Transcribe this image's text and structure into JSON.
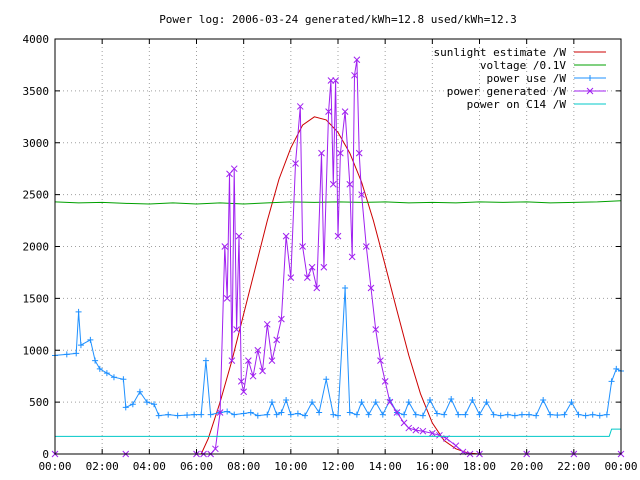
{
  "chart_data": {
    "type": "line",
    "title": "Power log: 2006-03-24 generated/kWh=12.8 used/kWh=12.3",
    "xlabel": "",
    "ylabel": "",
    "xlim": [
      0,
      24
    ],
    "ylim": [
      0,
      4000
    ],
    "grid": true,
    "legend_position": "top-right",
    "x_tick_labels": [
      "00:00",
      "02:00",
      "04:00",
      "06:00",
      "08:00",
      "10:00",
      "12:00",
      "14:00",
      "16:00",
      "18:00",
      "20:00",
      "22:00",
      "00:00"
    ],
    "x_tick_values": [
      0,
      2,
      4,
      6,
      8,
      10,
      12,
      14,
      16,
      18,
      20,
      22,
      24
    ],
    "y_tick_labels": [
      "0",
      "500",
      "1000",
      "1500",
      "2000",
      "2500",
      "3000",
      "3500",
      "4000"
    ],
    "y_tick_values": [
      0,
      500,
      1000,
      1500,
      2000,
      2500,
      3000,
      3500,
      4000
    ],
    "series": [
      {
        "name": "sunlight estimate /W",
        "color": "#cc0000",
        "marker": "none",
        "points": [
          [
            6.2,
            0
          ],
          [
            6.5,
            150
          ],
          [
            7,
            500
          ],
          [
            7.5,
            900
          ],
          [
            8,
            1350
          ],
          [
            8.5,
            1800
          ],
          [
            9,
            2250
          ],
          [
            9.5,
            2650
          ],
          [
            10,
            2950
          ],
          [
            10.5,
            3170
          ],
          [
            11,
            3250
          ],
          [
            11.5,
            3220
          ],
          [
            12,
            3100
          ],
          [
            12.5,
            2900
          ],
          [
            13,
            2620
          ],
          [
            13.5,
            2250
          ],
          [
            14,
            1820
          ],
          [
            14.5,
            1380
          ],
          [
            15,
            950
          ],
          [
            15.5,
            580
          ],
          [
            16,
            300
          ],
          [
            16.5,
            130
          ],
          [
            17,
            50
          ],
          [
            17.5,
            10
          ],
          [
            18,
            0
          ]
        ]
      },
      {
        "name": "voltage /0.1V",
        "color": "#00a000",
        "marker": "none",
        "points": [
          [
            0,
            2430
          ],
          [
            1,
            2420
          ],
          [
            2,
            2425
          ],
          [
            3,
            2415
          ],
          [
            4,
            2410
          ],
          [
            5,
            2420
          ],
          [
            6,
            2410
          ],
          [
            7,
            2420
          ],
          [
            8,
            2410
          ],
          [
            9,
            2420
          ],
          [
            10,
            2430
          ],
          [
            11,
            2425
          ],
          [
            12,
            2430
          ],
          [
            13,
            2425
          ],
          [
            14,
            2430
          ],
          [
            15,
            2420
          ],
          [
            16,
            2425
          ],
          [
            17,
            2420
          ],
          [
            18,
            2430
          ],
          [
            19,
            2425
          ],
          [
            20,
            2430
          ],
          [
            21,
            2420
          ],
          [
            22,
            2425
          ],
          [
            23,
            2430
          ],
          [
            24,
            2440
          ]
        ]
      },
      {
        "name": "power use /W",
        "color": "#1e90ff",
        "marker": "plus",
        "points": [
          [
            0,
            950
          ],
          [
            0.5,
            960
          ],
          [
            0.9,
            970
          ],
          [
            1.0,
            1370
          ],
          [
            1.1,
            1050
          ],
          [
            1.5,
            1100
          ],
          [
            1.7,
            900
          ],
          [
            1.9,
            820
          ],
          [
            2.2,
            780
          ],
          [
            2.5,
            740
          ],
          [
            2.9,
            720
          ],
          [
            3.0,
            450
          ],
          [
            3.3,
            480
          ],
          [
            3.6,
            600
          ],
          [
            3.9,
            500
          ],
          [
            4.2,
            480
          ],
          [
            4.4,
            370
          ],
          [
            4.8,
            380
          ],
          [
            5.2,
            370
          ],
          [
            5.6,
            375
          ],
          [
            5.9,
            380
          ],
          [
            6.2,
            380
          ],
          [
            6.4,
            900
          ],
          [
            6.6,
            380
          ],
          [
            7.0,
            400
          ],
          [
            7.3,
            410
          ],
          [
            7.6,
            380
          ],
          [
            8.0,
            390
          ],
          [
            8.3,
            400
          ],
          [
            8.6,
            370
          ],
          [
            9.0,
            380
          ],
          [
            9.2,
            500
          ],
          [
            9.4,
            380
          ],
          [
            9.6,
            400
          ],
          [
            9.8,
            520
          ],
          [
            10.0,
            380
          ],
          [
            10.3,
            390
          ],
          [
            10.6,
            370
          ],
          [
            10.9,
            500
          ],
          [
            11.2,
            400
          ],
          [
            11.5,
            720
          ],
          [
            11.8,
            380
          ],
          [
            12.0,
            370
          ],
          [
            12.3,
            1600
          ],
          [
            12.5,
            400
          ],
          [
            12.8,
            380
          ],
          [
            13.0,
            500
          ],
          [
            13.3,
            380
          ],
          [
            13.6,
            500
          ],
          [
            13.9,
            380
          ],
          [
            14.2,
            520
          ],
          [
            14.5,
            400
          ],
          [
            14.8,
            380
          ],
          [
            15.0,
            500
          ],
          [
            15.3,
            380
          ],
          [
            15.6,
            370
          ],
          [
            15.9,
            520
          ],
          [
            16.2,
            390
          ],
          [
            16.5,
            380
          ],
          [
            16.8,
            530
          ],
          [
            17.1,
            380
          ],
          [
            17.4,
            380
          ],
          [
            17.7,
            520
          ],
          [
            18.0,
            380
          ],
          [
            18.3,
            500
          ],
          [
            18.6,
            380
          ],
          [
            18.9,
            370
          ],
          [
            19.2,
            380
          ],
          [
            19.5,
            370
          ],
          [
            19.8,
            380
          ],
          [
            20.1,
            380
          ],
          [
            20.4,
            370
          ],
          [
            20.7,
            520
          ],
          [
            21.0,
            380
          ],
          [
            21.3,
            375
          ],
          [
            21.6,
            380
          ],
          [
            21.9,
            500
          ],
          [
            22.2,
            380
          ],
          [
            22.5,
            370
          ],
          [
            22.8,
            380
          ],
          [
            23.1,
            370
          ],
          [
            23.4,
            380
          ],
          [
            23.6,
            700
          ],
          [
            23.8,
            820
          ],
          [
            24.0,
            800
          ]
        ]
      },
      {
        "name": "power generated /W",
        "color": "#a020f0",
        "marker": "cross",
        "points": [
          [
            0,
            0
          ],
          [
            3,
            0
          ],
          [
            6,
            0
          ],
          [
            6.3,
            0
          ],
          [
            6.6,
            0
          ],
          [
            6.8,
            50
          ],
          [
            7.0,
            400
          ],
          [
            7.2,
            2000
          ],
          [
            7.3,
            1500
          ],
          [
            7.4,
            2700
          ],
          [
            7.5,
            900
          ],
          [
            7.6,
            2750
          ],
          [
            7.7,
            1200
          ],
          [
            7.8,
            2100
          ],
          [
            7.9,
            700
          ],
          [
            8.0,
            600
          ],
          [
            8.2,
            900
          ],
          [
            8.4,
            750
          ],
          [
            8.6,
            1000
          ],
          [
            8.8,
            800
          ],
          [
            9.0,
            1250
          ],
          [
            9.2,
            900
          ],
          [
            9.4,
            1100
          ],
          [
            9.6,
            1300
          ],
          [
            9.8,
            2100
          ],
          [
            10.0,
            1700
          ],
          [
            10.2,
            2800
          ],
          [
            10.4,
            3350
          ],
          [
            10.5,
            2000
          ],
          [
            10.7,
            1700
          ],
          [
            10.9,
            1800
          ],
          [
            11.1,
            1600
          ],
          [
            11.3,
            2900
          ],
          [
            11.4,
            1800
          ],
          [
            11.6,
            3300
          ],
          [
            11.7,
            3600
          ],
          [
            11.8,
            2600
          ],
          [
            11.9,
            3600
          ],
          [
            12.0,
            2100
          ],
          [
            12.1,
            2900
          ],
          [
            12.3,
            3300
          ],
          [
            12.5,
            2600
          ],
          [
            12.6,
            1900
          ],
          [
            12.7,
            3650
          ],
          [
            12.8,
            3800
          ],
          [
            12.9,
            2900
          ],
          [
            13.0,
            2500
          ],
          [
            13.2,
            2000
          ],
          [
            13.4,
            1600
          ],
          [
            13.6,
            1200
          ],
          [
            13.8,
            900
          ],
          [
            14.0,
            700
          ],
          [
            14.2,
            500
          ],
          [
            14.5,
            400
          ],
          [
            14.8,
            300
          ],
          [
            15.0,
            250
          ],
          [
            15.3,
            230
          ],
          [
            15.6,
            220
          ],
          [
            16.0,
            200
          ],
          [
            16.3,
            180
          ],
          [
            16.6,
            150
          ],
          [
            17.0,
            80
          ],
          [
            17.3,
            20
          ],
          [
            17.6,
            0
          ],
          [
            18,
            0
          ],
          [
            20,
            0
          ],
          [
            22,
            0
          ],
          [
            24,
            0
          ]
        ]
      },
      {
        "name": "power on C14 /W",
        "color": "#00c8c8",
        "marker": "none",
        "points": [
          [
            0,
            170
          ],
          [
            2,
            170
          ],
          [
            4,
            170
          ],
          [
            6,
            170
          ],
          [
            8,
            170
          ],
          [
            10,
            170
          ],
          [
            12,
            170
          ],
          [
            14,
            170
          ],
          [
            16,
            170
          ],
          [
            18,
            170
          ],
          [
            20,
            170
          ],
          [
            22,
            170
          ],
          [
            23.5,
            170
          ],
          [
            23.6,
            240
          ],
          [
            24,
            240
          ]
        ]
      }
    ]
  }
}
